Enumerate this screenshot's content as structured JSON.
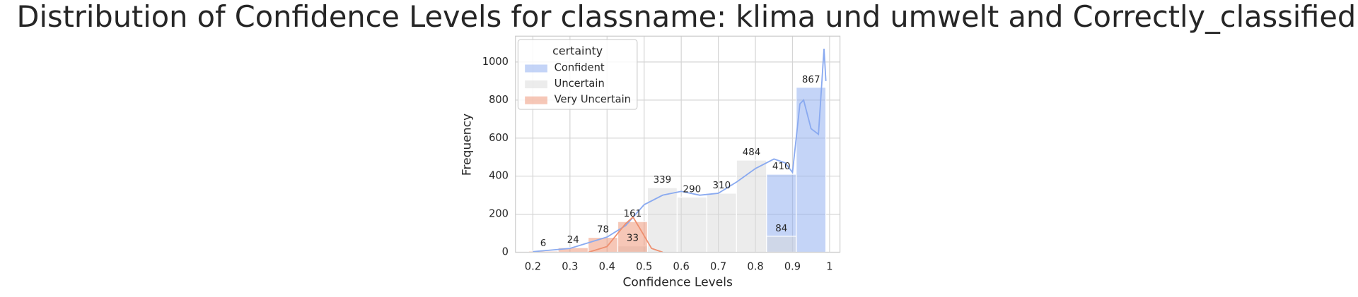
{
  "chart_data": {
    "type": "histogram",
    "title": "Distribution of Confidence Levels for classname: klima und umwelt and Correctly_classified",
    "xlabel": "Confidence Levels",
    "ylabel": "Frequency",
    "legend_title": "certainty",
    "legend_position": "upper left",
    "grid": true,
    "bins": [
      0.188,
      0.268,
      0.349,
      0.429,
      0.509,
      0.589,
      0.669,
      0.749,
      0.83,
      0.91,
      0.99
    ],
    "series": [
      {
        "name": "Confident",
        "color": "#8aaaf0",
        "values": [
          null,
          null,
          null,
          null,
          null,
          null,
          null,
          null,
          410,
          867
        ],
        "kde": {
          "x": [
            0.2,
            0.3,
            0.4,
            0.45,
            0.5,
            0.55,
            0.6,
            0.65,
            0.7,
            0.75,
            0.8,
            0.85,
            0.88,
            0.9,
            0.92,
            0.93,
            0.95,
            0.97,
            0.985,
            0.99
          ],
          "values": [
            3,
            20,
            80,
            140,
            250,
            300,
            320,
            300,
            310,
            370,
            440,
            490,
            470,
            420,
            780,
            800,
            650,
            620,
            1070,
            900
          ]
        }
      },
      {
        "name": "Uncertain",
        "color": "#d9d9d9",
        "values": [
          null,
          null,
          null,
          33,
          339,
          290,
          310,
          484,
          84,
          null
        ]
      },
      {
        "name": "Very Uncertain",
        "color": "#ee9070",
        "values": [
          6,
          24,
          78,
          161,
          null,
          null,
          null,
          null,
          null,
          null
        ],
        "kde": {
          "x": [
            0.35,
            0.4,
            0.45,
            0.47,
            0.49,
            0.52,
            0.55
          ],
          "values": [
            0,
            30,
            150,
            185,
            120,
            20,
            0
          ]
        }
      }
    ],
    "xlim": [
      0.153,
      1.028
    ],
    "xticks": [
      0.2,
      0.3,
      0.4,
      0.5,
      0.6,
      0.7,
      0.8,
      0.9,
      1.0
    ],
    "ylim": [
      0,
      1136
    ],
    "yticks": [
      0,
      200,
      400,
      600,
      800,
      1000
    ]
  }
}
